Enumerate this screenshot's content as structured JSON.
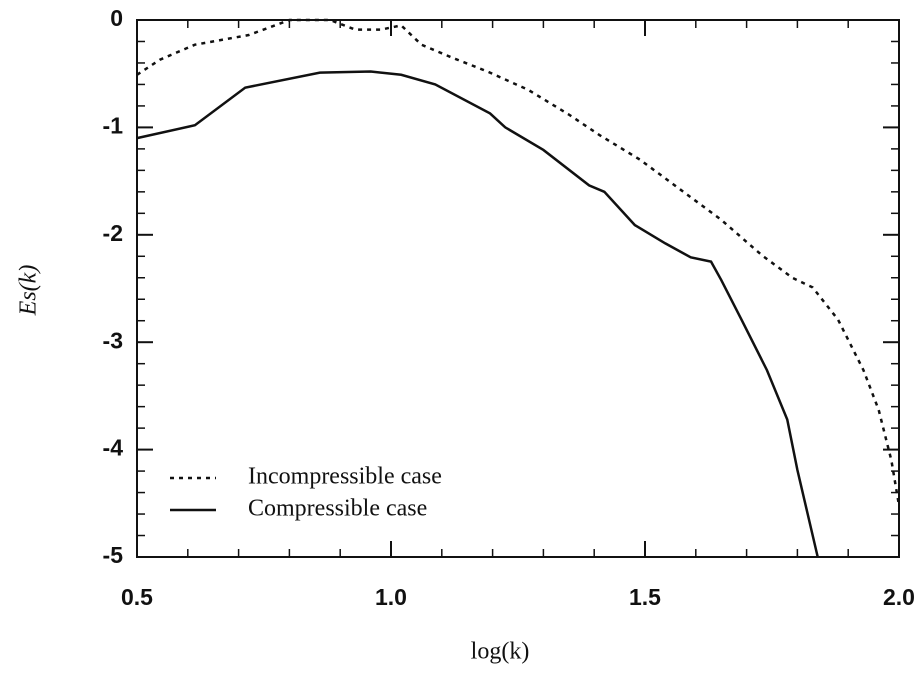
{
  "chart_data": {
    "type": "line",
    "xlabel": "log(k)",
    "ylabel": "Es(k)",
    "xlim": [
      0.5,
      2.0
    ],
    "ylim": [
      -5,
      0
    ],
    "xticks": [
      0.5,
      {
        "value": 1.0,
        "label": "1.0"
      },
      1.5,
      {
        "value": 2.0,
        "label": "2.0"
      }
    ],
    "yticks": [
      0,
      -1,
      -2,
      -3,
      -4,
      -5
    ],
    "xticks_minor": [
      0.6,
      0.7,
      0.8,
      0.9,
      1.1,
      1.2,
      1.3,
      1.4,
      1.6,
      1.7,
      1.8,
      1.9
    ],
    "yticks_minor": [
      -0.2,
      -0.4,
      -0.6,
      -0.8,
      -1.2,
      -1.4,
      -1.6,
      -1.8,
      -2.2,
      -2.4,
      -2.6,
      -2.8,
      -3.2,
      -3.4,
      -3.6,
      -3.8,
      -4.2,
      -4.4,
      -4.6,
      -4.8
    ],
    "legend": "lower left",
    "series": [
      {
        "name": "Incompressible case",
        "color": "#111111",
        "style": "dotted",
        "x": [
          0.5,
          0.545,
          0.614,
          0.72,
          0.8,
          0.88,
          0.93,
          0.98,
          1.02,
          1.06,
          1.12,
          1.19,
          1.27,
          1.35,
          1.41,
          1.49,
          1.57,
          1.65,
          1.73,
          1.79,
          1.83,
          1.88,
          1.93,
          1.96,
          1.985,
          2.0
        ],
        "values": [
          -0.51,
          -0.37,
          -0.23,
          -0.14,
          0,
          0,
          -0.09,
          -0.09,
          -0.05,
          -0.23,
          -0.35,
          -0.48,
          -0.65,
          -0.88,
          -1.07,
          -1.3,
          -1.58,
          -1.86,
          -2.19,
          -2.4,
          -2.49,
          -2.79,
          -3.26,
          -3.63,
          -4.1,
          -4.52
        ]
      },
      {
        "name": "Compressible case",
        "color": "#111111",
        "style": "solid",
        "x": [
          0.5,
          0.614,
          0.713,
          0.86,
          0.96,
          1.02,
          1.087,
          1.195,
          1.225,
          1.3,
          1.39,
          1.42,
          1.48,
          1.54,
          1.59,
          1.63,
          1.65,
          1.69,
          1.74,
          1.78,
          1.8,
          1.84
        ],
        "values": [
          -1.1,
          -0.98,
          -0.63,
          -0.49,
          -0.48,
          -0.51,
          -0.6,
          -0.87,
          -1.0,
          -1.21,
          -1.54,
          -1.6,
          -1.91,
          -2.08,
          -2.21,
          -2.25,
          -2.42,
          -2.79,
          -3.26,
          -3.72,
          -4.19,
          -5.0
        ]
      }
    ]
  }
}
